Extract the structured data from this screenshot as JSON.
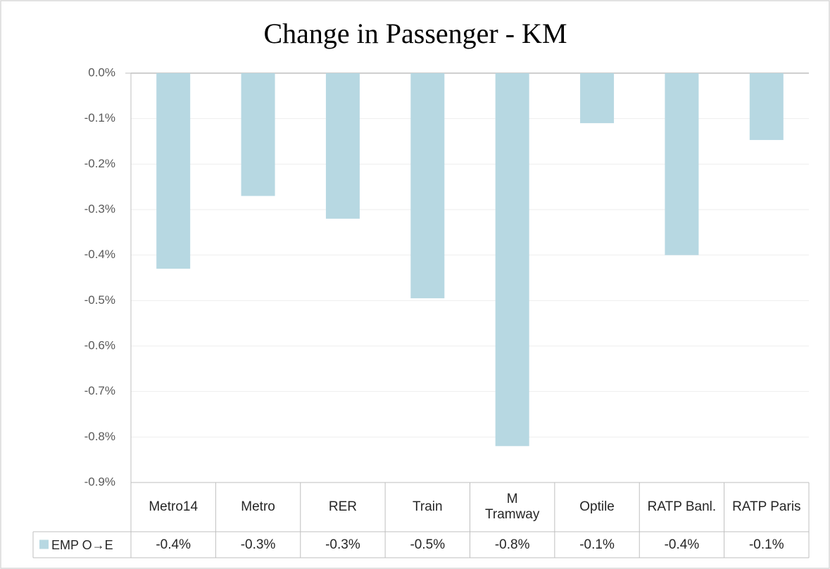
{
  "chart_data": {
    "type": "bar",
    "title": "Change in Passenger - KM",
    "categories": [
      "Metro14",
      "Metro",
      "RER",
      "Train",
      "M\nTramway",
      "Optile",
      "RATP Banl.",
      "RATP Paris"
    ],
    "series": [
      {
        "name": "EMP O→E",
        "color": "#b7d8e2",
        "values": [
          -0.43,
          -0.27,
          -0.32,
          -0.495,
          -0.82,
          -0.11,
          -0.4,
          -0.147
        ],
        "value_labels": [
          "-0.4%",
          "-0.3%",
          "-0.3%",
          "-0.5%",
          "-0.8%",
          "-0.1%",
          "-0.4%",
          "-0.1%"
        ]
      }
    ],
    "ylim": [
      -0.9,
      0
    ],
    "yticks": [
      {
        "value": 0,
        "label": "0.0%"
      },
      {
        "value": -0.1,
        "label": "-0.1%"
      },
      {
        "value": -0.2,
        "label": "-0.2%"
      },
      {
        "value": -0.3,
        "label": "-0.3%"
      },
      {
        "value": -0.4,
        "label": "-0.4%"
      },
      {
        "value": -0.5,
        "label": "-0.5%"
      },
      {
        "value": -0.6,
        "label": "-0.6%"
      },
      {
        "value": -0.7,
        "label": "-0.7%"
      },
      {
        "value": -0.8,
        "label": "-0.8%"
      },
      {
        "value": -0.9,
        "label": "-0.9%"
      }
    ],
    "grid": true,
    "data_table": true
  }
}
